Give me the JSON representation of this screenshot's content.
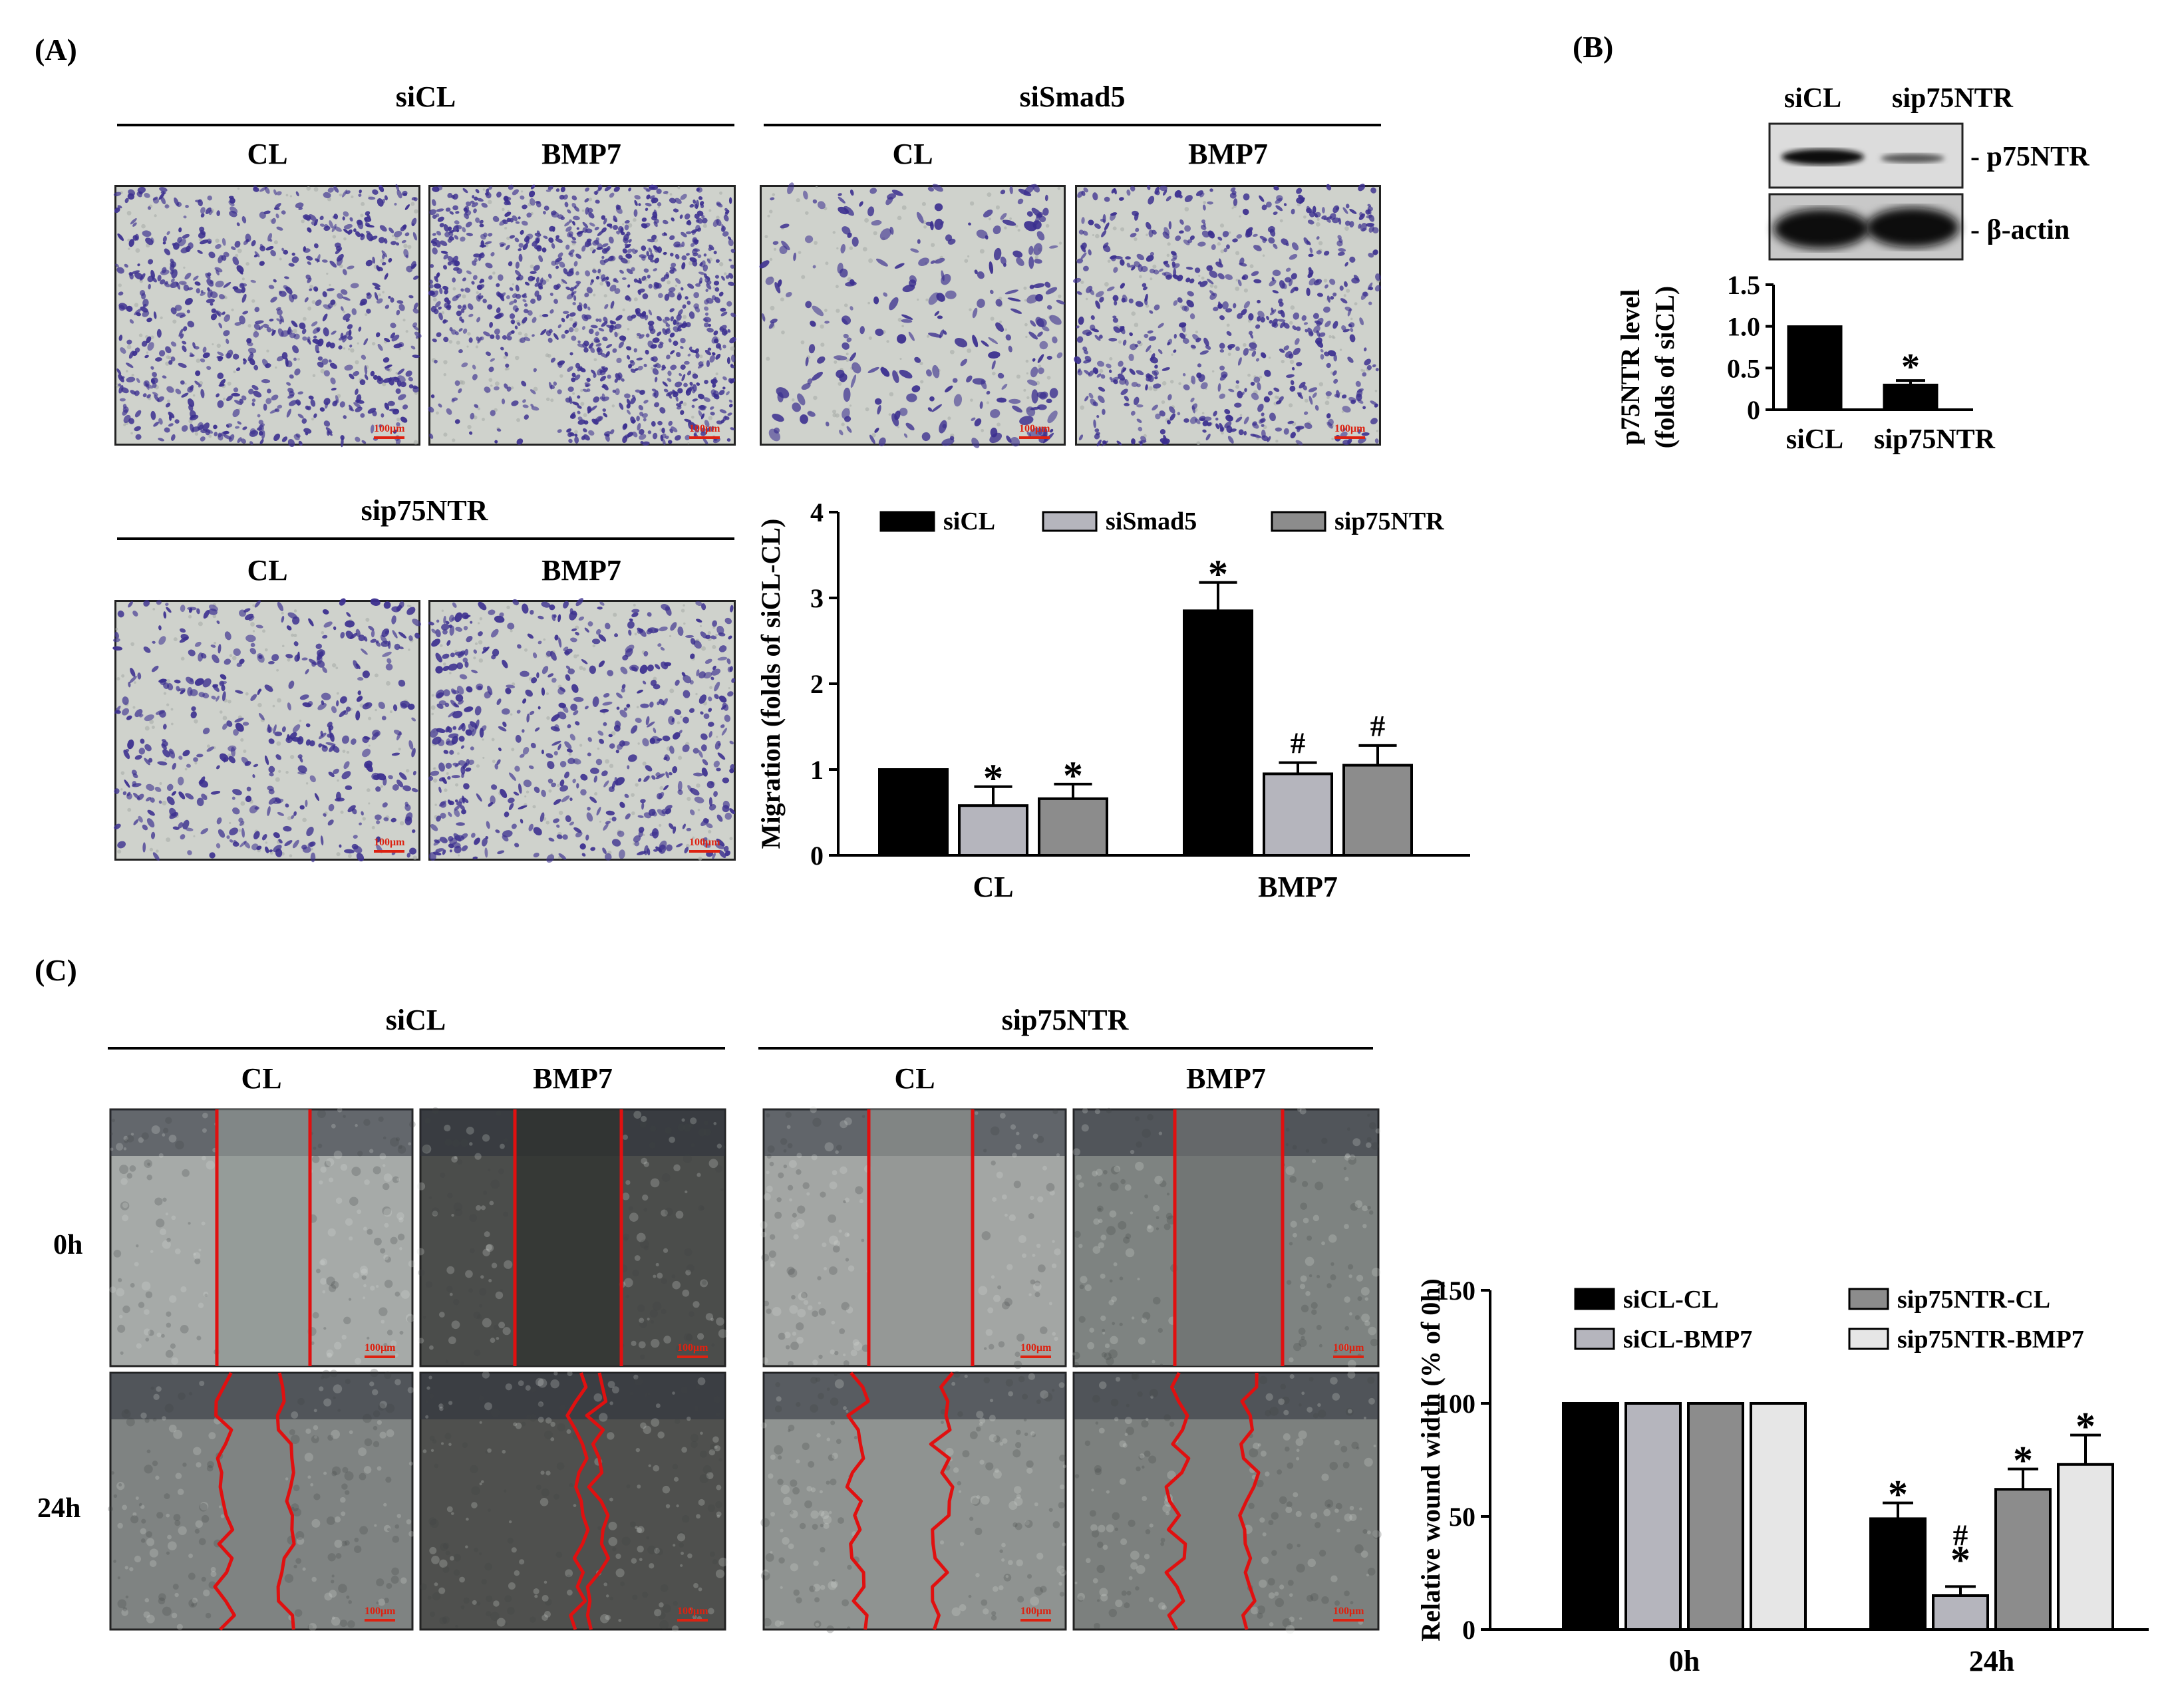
{
  "panels": {
    "A": {
      "label": "(A)",
      "group1": {
        "title": "siCL",
        "col1": "CL",
        "col2": "BMP7"
      },
      "group2": {
        "title": "siSmad5",
        "col1": "CL",
        "col2": "BMP7"
      },
      "group3": {
        "title": "sip75NTR",
        "col1": "CL",
        "col2": "BMP7"
      },
      "scale_bar": "100μm"
    },
    "B": {
      "label": "(B)",
      "lane1": "siCL",
      "lane2": "sip75NTR",
      "band1": "- p75NTR",
      "band2": "- β-actin"
    },
    "C": {
      "label": "(C)",
      "group1": {
        "title": "siCL",
        "col1": "CL",
        "col2": "BMP7"
      },
      "group2": {
        "title": "sip75NTR",
        "col1": "CL",
        "col2": "BMP7"
      },
      "row1": "0h",
      "row2": "24h",
      "scale_bar": "100μm"
    }
  },
  "colors": {
    "black": "#000000",
    "light_gray": "#b5b5bd",
    "mid_gray": "#8c8c8c",
    "very_light": "#e6e6e6",
    "stain": "#3b2f8f",
    "wound_line": "#e01010"
  },
  "chart_data": [
    {
      "id": "chartA",
      "type": "bar",
      "categories": [
        "CL",
        "BMP7"
      ],
      "ylabel": "Migration (folds of siCL-CL)",
      "ylim": [
        0,
        4
      ],
      "yticks": [
        "0",
        "1",
        "2",
        "3",
        "4"
      ],
      "legend": [
        "siCL",
        "siSmad5",
        "sip75NTR"
      ],
      "legend_position": "top",
      "series": [
        {
          "name": "siCL",
          "values": [
            1.0,
            2.85
          ],
          "errors": [
            0,
            0.33
          ],
          "marks": [
            "",
            "*"
          ]
        },
        {
          "name": "siSmad5",
          "values": [
            0.58,
            0.95
          ],
          "errors": [
            0.22,
            0.13
          ],
          "marks": [
            "*",
            "#"
          ]
        },
        {
          "name": "sip75NTR",
          "values": [
            0.66,
            1.05
          ],
          "errors": [
            0.17,
            0.23
          ],
          "marks": [
            "*",
            "#"
          ]
        }
      ]
    },
    {
      "id": "chartB",
      "type": "bar",
      "categories": [
        "siCL",
        "sip75NTR"
      ],
      "ylabel": "p75NTR level (folds of siCL)",
      "ylabel_lines": [
        "p75NTR level",
        "(folds of siCL)"
      ],
      "ylim": [
        0,
        1.5
      ],
      "yticks": [
        "0",
        "0.5",
        "1.0",
        "1.5"
      ],
      "values": [
        1.0,
        0.3
      ],
      "errors": [
        0,
        0.05
      ],
      "marks": [
        "",
        "*"
      ]
    },
    {
      "id": "chartC",
      "type": "bar",
      "categories": [
        "0h",
        "24h"
      ],
      "ylabel": "Relative wound width (% of 0h)",
      "ylim": [
        0,
        150
      ],
      "yticks": [
        "0",
        "50",
        "100",
        "150"
      ],
      "legend": [
        "siCL-CL",
        "siCL-BMP7",
        "sip75NTR-CL",
        "sip75NTR-BMP7"
      ],
      "legend_position": "top",
      "series": [
        {
          "name": "siCL-CL",
          "values": [
            100,
            49
          ],
          "errors": [
            0,
            7
          ],
          "marks": [
            "",
            "*"
          ]
        },
        {
          "name": "siCL-BMP7",
          "values": [
            100,
            15
          ],
          "errors": [
            0,
            4
          ],
          "marks": [
            "",
            "#*"
          ]
        },
        {
          "name": "sip75NTR-CL",
          "values": [
            100,
            62
          ],
          "errors": [
            0,
            9
          ],
          "marks": [
            "",
            "*"
          ]
        },
        {
          "name": "sip75NTR-BMP7",
          "values": [
            100,
            73
          ],
          "errors": [
            0,
            13
          ],
          "marks": [
            "",
            "*"
          ]
        }
      ]
    }
  ]
}
